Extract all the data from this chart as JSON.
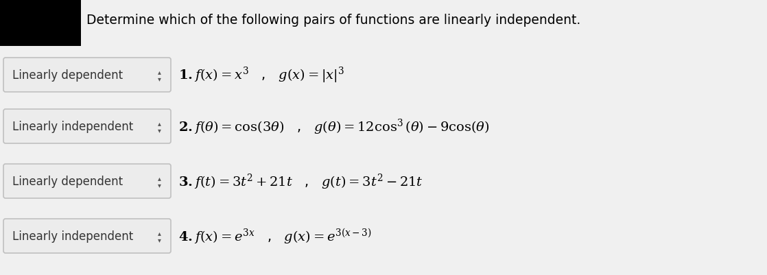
{
  "title": "Determine which of the following pairs of functions are linearly independent.",
  "background_color": "#f0f0f0",
  "rows": [
    {
      "dropdown_label": "Linearly dependent",
      "math": "\\textbf{1.}$\\,f(x) = x^3$   ,   $g(x) = |x|^3$"
    },
    {
      "dropdown_label": "Linearly independent",
      "math": "\\textbf{2.}$\\,f(\\theta) = \\cos(3\\theta)$   ,   $g(\\theta) = 12\\cos^3(\\theta) - 9\\cos(\\theta)$"
    },
    {
      "dropdown_label": "Linearly dependent",
      "math": "\\textbf{3.}$\\,f(t) = 3t^2 + 21t$   ,   $g(t) = 3t^2 - 21t$"
    },
    {
      "dropdown_label": "Linearly independent",
      "math": "\\textbf{4.}$\\,f(x) = e^{3x}$   ,   $g(x) = e^{3(x-3)}$"
    }
  ]
}
